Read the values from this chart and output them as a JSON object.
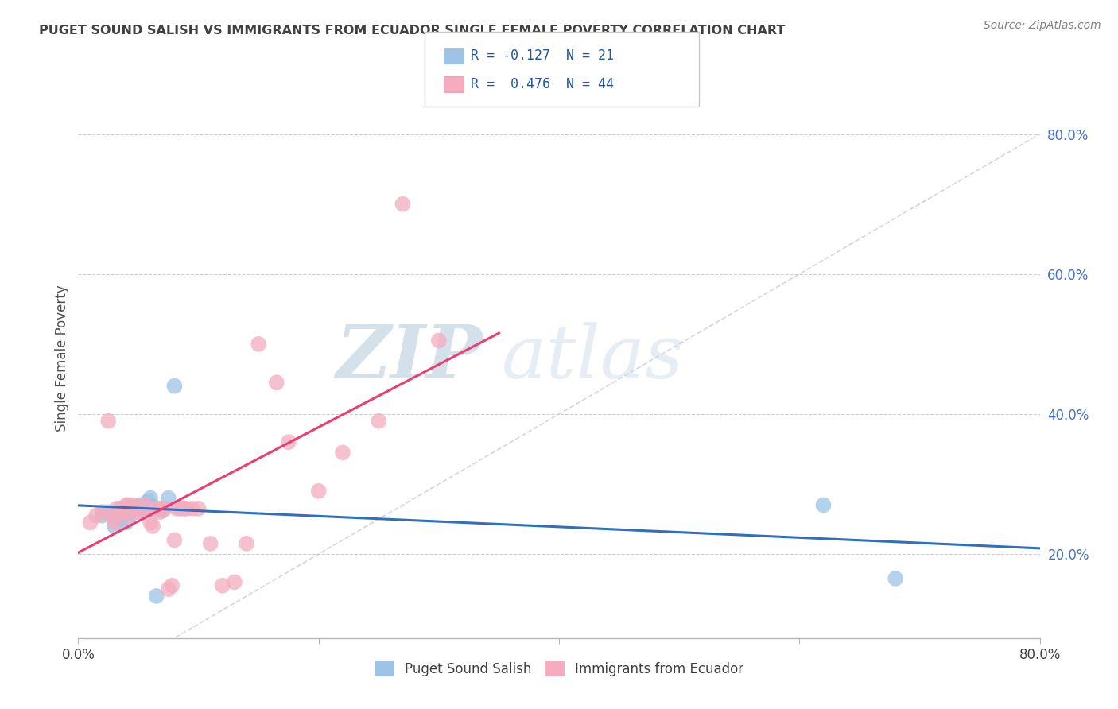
{
  "title": "PUGET SOUND SALISH VS IMMIGRANTS FROM ECUADOR SINGLE FEMALE POVERTY CORRELATION CHART",
  "source": "Source: ZipAtlas.com",
  "ylabel": "Single Female Poverty",
  "xlim": [
    0.0,
    0.8
  ],
  "ylim": [
    0.08,
    0.88
  ],
  "yticks": [
    0.2,
    0.4,
    0.6,
    0.8
  ],
  "ytick_labels": [
    "20.0%",
    "40.0%",
    "60.0%",
    "80.0%"
  ],
  "xtick_positions": [
    0.0,
    0.2,
    0.4,
    0.6,
    0.8
  ],
  "xtick_labels": [
    "0.0%",
    "",
    "",
    "",
    "80.0%"
  ],
  "legend_labels": [
    "Puget Sound Salish",
    "Immigrants from Ecuador"
  ],
  "legend_r": [
    -0.127,
    0.476
  ],
  "legend_n": [
    21,
    44
  ],
  "blue_color": "#9DC3E6",
  "pink_color": "#F4ACBE",
  "blue_line_color": "#2E6FBE",
  "pink_line_color": "#E84070",
  "diagonal_color": "#C8CDD2",
  "title_color": "#404040",
  "watermark_zip": "ZIP",
  "watermark_atlas": "atlas",
  "blue_scatter_x": [
    0.02,
    0.025,
    0.03,
    0.035,
    0.04,
    0.042,
    0.045,
    0.048,
    0.05,
    0.052,
    0.055,
    0.058,
    0.06,
    0.062,
    0.065,
    0.068,
    0.07,
    0.075,
    0.08,
    0.62,
    0.68
  ],
  "blue_scatter_y": [
    0.255,
    0.26,
    0.24,
    0.25,
    0.245,
    0.27,
    0.258,
    0.262,
    0.268,
    0.27,
    0.262,
    0.275,
    0.28,
    0.268,
    0.14,
    0.265,
    0.262,
    0.28,
    0.44,
    0.27,
    0.165
  ],
  "pink_scatter_x": [
    0.01,
    0.015,
    0.02,
    0.025,
    0.028,
    0.03,
    0.032,
    0.035,
    0.038,
    0.04,
    0.042,
    0.045,
    0.048,
    0.05,
    0.052,
    0.055,
    0.058,
    0.06,
    0.062,
    0.065,
    0.068,
    0.07,
    0.072,
    0.075,
    0.078,
    0.08,
    0.082,
    0.085,
    0.088,
    0.09,
    0.095,
    0.1,
    0.11,
    0.12,
    0.13,
    0.14,
    0.15,
    0.165,
    0.175,
    0.2,
    0.22,
    0.25,
    0.27,
    0.3
  ],
  "pink_scatter_y": [
    0.245,
    0.255,
    0.26,
    0.39,
    0.255,
    0.245,
    0.265,
    0.265,
    0.26,
    0.27,
    0.255,
    0.27,
    0.265,
    0.265,
    0.26,
    0.27,
    0.265,
    0.245,
    0.24,
    0.265,
    0.26,
    0.265,
    0.265,
    0.15,
    0.155,
    0.22,
    0.265,
    0.265,
    0.265,
    0.265,
    0.265,
    0.265,
    0.215,
    0.155,
    0.16,
    0.215,
    0.5,
    0.445,
    0.36,
    0.29,
    0.345,
    0.39,
    0.7,
    0.505
  ]
}
